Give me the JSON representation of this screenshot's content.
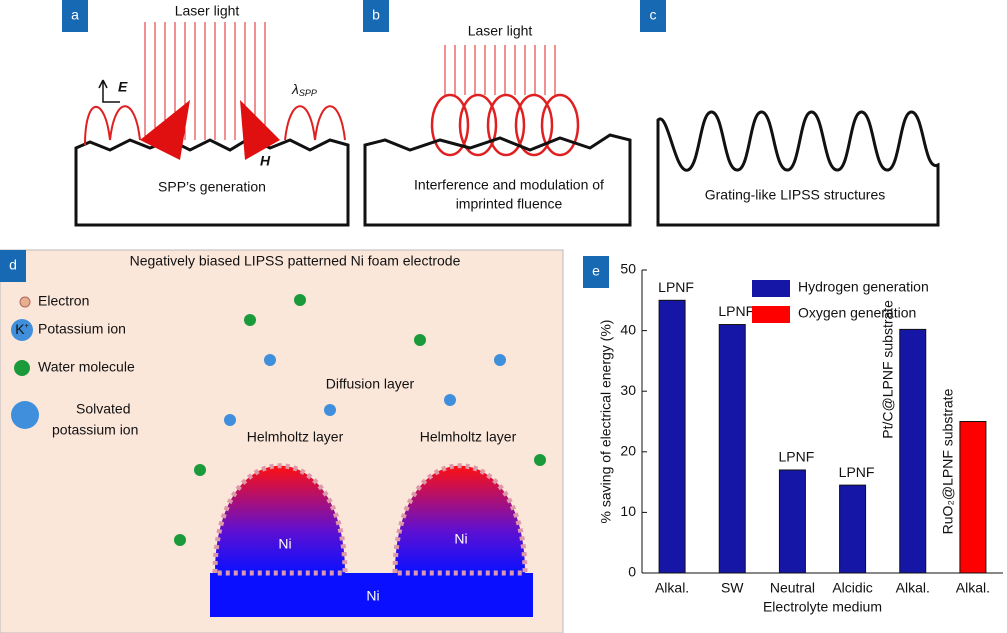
{
  "panels": {
    "a": {
      "label": "a",
      "laser": "Laser light",
      "e_field": "E",
      "h_field": "H",
      "lambda": "λ",
      "lambda_sub": "SPP",
      "caption": "SPP’s generation"
    },
    "b": {
      "label": "b",
      "laser": "Laser light",
      "caption": [
        "Interference and modulation of",
        "imprinted fluence"
      ]
    },
    "c": {
      "label": "c",
      "caption": "Grating-like LIPSS structures"
    },
    "d": {
      "label": "d",
      "title": "Negatively biased LIPSS patterned Ni foam electrode",
      "legend": [
        "Electron",
        "Potassium ion",
        "Water molecule",
        [
          "Solvated",
          "potassium ion"
        ]
      ],
      "ion": "K",
      "ion_charge": "+",
      "diffusion": "Diffusion layer",
      "helmholtz": [
        "Helmholtz layer",
        "Helmholtz layer"
      ],
      "ni": [
        "Ni",
        "Ni",
        "Ni"
      ]
    }
  },
  "chart_data": {
    "type": "bar",
    "panel_label": "e",
    "categories": [
      "Alkal.",
      "SW",
      "Neutral",
      "Alcidic",
      "Alkal.",
      "Alkal."
    ],
    "series": [
      {
        "name": "Hydrogen generation",
        "color": "#1616a6",
        "values": [
          45,
          41,
          17,
          14.5,
          40.2,
          null
        ]
      },
      {
        "name": "Oxygen generation",
        "color": "#ff0000",
        "values": [
          null,
          null,
          null,
          null,
          null,
          25
        ]
      }
    ],
    "bar_labels": [
      "LPNF",
      "LPNF",
      "LPNF",
      "LPNF",
      "Pt/C@LPNF substrate",
      "RuO₂@LPNF substrate"
    ],
    "bar_label_rotated": [
      false,
      false,
      false,
      false,
      true,
      true
    ],
    "xlabel": "Electrolyte medium",
    "ylabel": "% saving of electrical energy (%)",
    "ylim": [
      0,
      50
    ],
    "yticks": [
      0,
      10,
      20,
      30,
      40,
      50
    ]
  }
}
